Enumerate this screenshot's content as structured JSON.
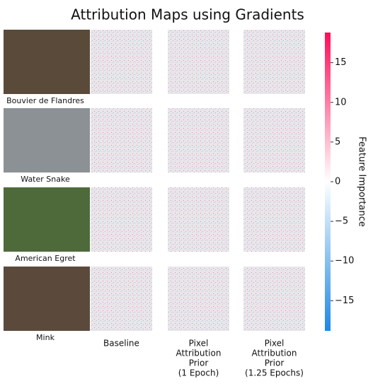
{
  "chart_data": {
    "type": "image-grid",
    "title": "Attribution Maps using Gradients",
    "rows": [
      "Bouvier de Flandres",
      "Water Snake",
      "American Egret",
      "Mink"
    ],
    "columns": [
      [
        "Baseline"
      ],
      [
        "Pixel",
        "Attribution",
        "Prior",
        "(1 Epoch)"
      ],
      [
        "Pixel",
        "Attribution",
        "Prior",
        "(1.25 Epochs)"
      ]
    ],
    "colorbar": {
      "label": "Feature Importance",
      "lim": [
        -18.8,
        18.8
      ],
      "ticks": [
        15,
        10,
        5,
        0,
        {
          "value": -5,
          "label": "−5"
        },
        {
          "value": -10,
          "label": "−10"
        },
        {
          "value": -15,
          "label": "−15"
        }
      ],
      "colors": [
        "#1e88e5",
        "#ffffff",
        "#ff0d57"
      ]
    }
  }
}
